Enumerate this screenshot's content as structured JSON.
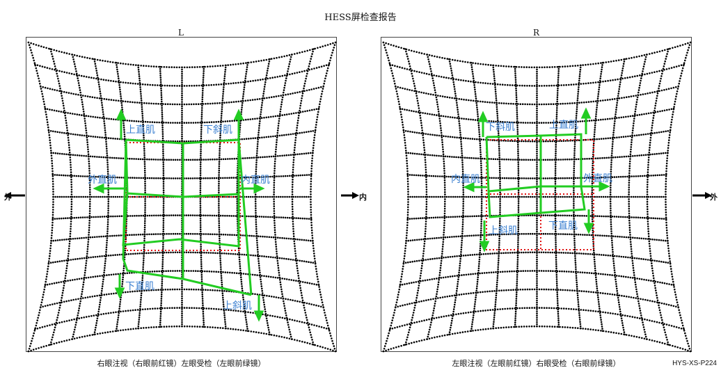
{
  "title": "HESS屏检查报告",
  "report_code": "HYS-XS-P224",
  "side_labels": {
    "outer": "外",
    "inner": "内"
  },
  "panels": [
    {
      "id": "left",
      "eye": "L",
      "caption": "右眼注视（右眼前红镜）左眼受检（左眼前绿镜）",
      "outer_side": "left",
      "muscles": {
        "top_left": "上直肌",
        "top_right": "下斜肌",
        "mid_left": "外直肌",
        "mid_right": "内直肌",
        "bot_left": "下直肌",
        "bot_right": "上斜肌"
      }
    },
    {
      "id": "right",
      "eye": "R",
      "caption": "左眼注视（左眼前红镜）右眼受检（右眼前绿镜）",
      "outer_side": "right",
      "muscles": {
        "top_left": "下斜肌",
        "top_right": "上直肌",
        "mid_left": "内直肌",
        "mid_right": "外直肌",
        "bot_left": "上斜肌",
        "bot_right": "下直肌"
      }
    }
  ],
  "colors": {
    "grid": "#000000",
    "normal": "#e01010",
    "measured": "#22cc22",
    "label": "#3a7fd0"
  }
}
